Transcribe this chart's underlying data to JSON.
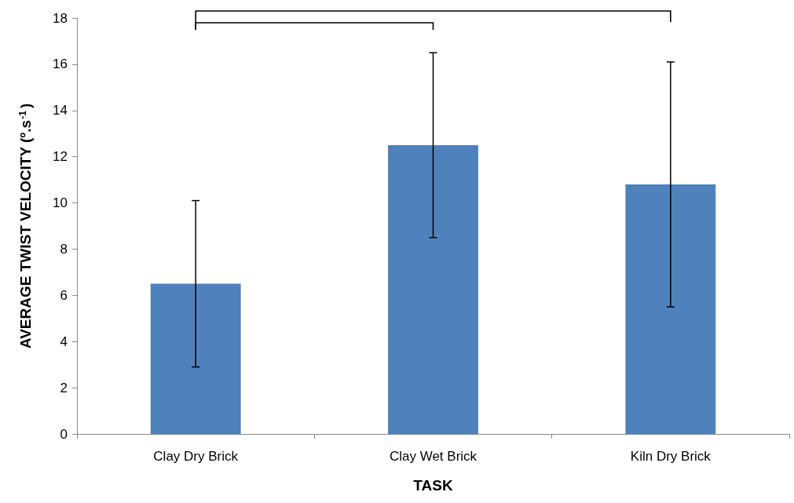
{
  "chart_data": {
    "type": "bar",
    "xlabel": "TASK",
    "ylabel": "AVERAGE TWIST VELOCITY (º.s$^{-1}$)",
    "categories": [
      "Clay Dry Brick",
      "Clay Wet Brick",
      "Kiln Dry Brick"
    ],
    "series": [
      {
        "color": "#4f81bd",
        "values": [
          6.5,
          12.5,
          10.8
        ],
        "errors": [
          3.6,
          4.0,
          5.3
        ]
      }
    ],
    "ylim": [
      0,
      18
    ],
    "yticks": [
      0,
      2,
      4,
      6,
      8,
      10,
      12,
      14,
      16,
      18
    ]
  }
}
